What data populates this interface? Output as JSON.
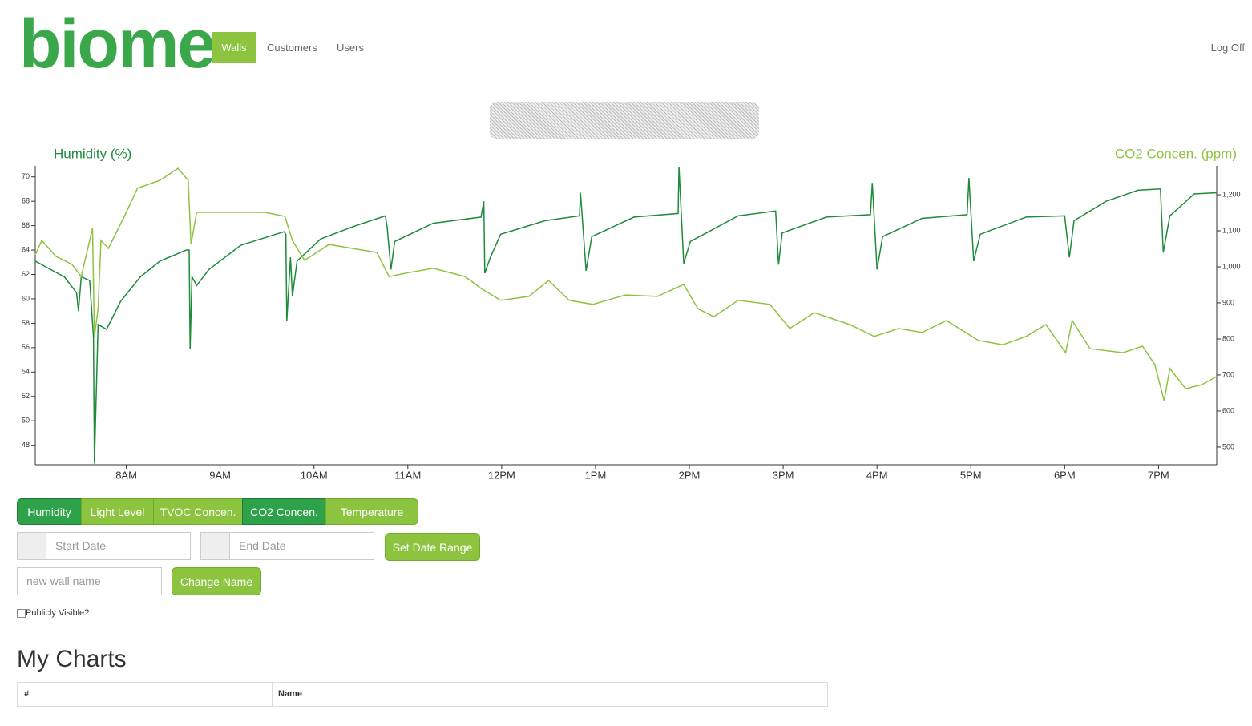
{
  "logo": "biome",
  "nav": {
    "items": [
      "Walls",
      "Customers",
      "Users"
    ],
    "logoff": "Log Off"
  },
  "chart_data": {
    "type": "line",
    "y_label": "Humidity (%)",
    "y2_label": "CO2 Concen. (ppm)",
    "xlim": [
      7.03,
      19.62
    ],
    "xticks": [
      {
        "value": 8,
        "label": "8AM"
      },
      {
        "value": 9,
        "label": "9AM"
      },
      {
        "value": 10,
        "label": "10AM"
      },
      {
        "value": 11,
        "label": "11AM"
      },
      {
        "value": 12,
        "label": "12PM"
      },
      {
        "value": 13,
        "label": "1PM"
      },
      {
        "value": 14,
        "label": "2PM"
      },
      {
        "value": 15,
        "label": "3PM"
      },
      {
        "value": 16,
        "label": "4PM"
      },
      {
        "value": 17,
        "label": "5PM"
      },
      {
        "value": 18,
        "label": "6PM"
      },
      {
        "value": 19,
        "label": "7PM"
      }
    ],
    "ylim": [
      46.4,
      70.9
    ],
    "yticks": [
      48,
      50,
      52,
      54,
      56,
      58,
      60,
      62,
      64,
      66,
      68,
      70
    ],
    "y2lim": [
      451,
      1280
    ],
    "y2ticks": [
      500,
      600,
      700,
      800,
      900,
      {
        "value": 1000,
        "label": "1,000"
      },
      {
        "value": 1100,
        "label": "1,100"
      },
      {
        "value": 1200,
        "label": "1,200"
      }
    ],
    "series": [
      {
        "name": "Humidity",
        "color": "#1e8a3c",
        "x": [
          7.03,
          7.17,
          7.34,
          7.47,
          7.49,
          7.52,
          7.61,
          7.65,
          7.66,
          7.7,
          7.79,
          7.94,
          8.15,
          8.36,
          8.64,
          8.67,
          8.68,
          8.7,
          8.75,
          8.88,
          9.22,
          9.68,
          9.7,
          9.71,
          9.75,
          9.77,
          9.82,
          10.07,
          10.41,
          10.76,
          10.78,
          10.82,
          10.86,
          11.27,
          11.78,
          11.81,
          11.82,
          11.88,
          11.99,
          12.46,
          12.83,
          12.84,
          12.9,
          12.96,
          13.41,
          13.88,
          13.89,
          13.94,
          14.01,
          14.52,
          14.92,
          14.95,
          14.99,
          15.46,
          15.93,
          15.95,
          16.0,
          16.06,
          16.48,
          16.96,
          16.98,
          17.03,
          17.1,
          17.59,
          18.0,
          18.05,
          18.1,
          18.44,
          18.78,
          19.0,
          19.02,
          19.05,
          19.12,
          19.38,
          19.62
        ],
        "values": [
          63.1,
          62.5,
          61.8,
          60.5,
          59.0,
          61.8,
          61.5,
          56.9,
          46.5,
          57.9,
          57.5,
          59.8,
          61.8,
          63.1,
          64.0,
          64.0,
          55.9,
          61.8,
          61.1,
          62.4,
          64.4,
          65.5,
          65.3,
          58.2,
          63.4,
          60.2,
          63.1,
          64.9,
          65.9,
          66.8,
          65.9,
          62.4,
          64.7,
          66.2,
          66.7,
          68.0,
          62.1,
          63.4,
          65.3,
          66.4,
          66.8,
          68.7,
          62.3,
          65.1,
          66.7,
          67.0,
          70.8,
          62.9,
          64.7,
          66.8,
          67.2,
          62.8,
          65.4,
          66.7,
          66.9,
          69.5,
          62.4,
          65.1,
          66.6,
          66.9,
          69.9,
          63.1,
          65.3,
          66.7,
          66.8,
          63.4,
          66.4,
          68.0,
          68.9,
          69.0,
          69.0,
          63.8,
          66.8,
          68.6,
          68.7
        ]
      },
      {
        "name": "CO2 Concen.",
        "color": "#8cc43f",
        "axis": "y2",
        "x": [
          7.03,
          7.1,
          7.25,
          7.42,
          7.52,
          7.61,
          7.64,
          7.66,
          7.7,
          7.73,
          7.81,
          7.98,
          8.12,
          8.36,
          8.55,
          8.66,
          8.69,
          8.75,
          9.13,
          9.48,
          9.69,
          9.77,
          9.9,
          10.16,
          10.41,
          10.67,
          10.8,
          11.01,
          11.27,
          11.61,
          11.78,
          11.99,
          12.29,
          12.5,
          12.72,
          12.97,
          13.32,
          13.66,
          13.94,
          14.09,
          14.26,
          14.52,
          14.86,
          15.07,
          15.33,
          15.71,
          15.97,
          16.23,
          16.48,
          16.74,
          17.08,
          17.34,
          17.59,
          17.8,
          18.01,
          18.08,
          18.27,
          18.62,
          18.83,
          18.96,
          19.06,
          19.12,
          19.29,
          19.46,
          19.62
        ],
        "values": [
          1033,
          1073,
          1029,
          1007,
          973,
          1073,
          1107,
          807,
          884,
          1073,
          1051,
          1140,
          1218,
          1240,
          1273,
          1240,
          1062,
          1151,
          1151,
          1151,
          1140,
          1073,
          1018,
          1062,
          1051,
          1040,
          973,
          984,
          996,
          973,
          940,
          907,
          918,
          962,
          907,
          896,
          922,
          918,
          951,
          884,
          862,
          907,
          896,
          829,
          873,
          840,
          807,
          829,
          818,
          851,
          796,
          784,
          807,
          840,
          762,
          851,
          773,
          762,
          780,
          729,
          629,
          718,
          662,
          673,
          696
        ]
      }
    ]
  },
  "buttons": [
    "Humidity",
    "Light Level",
    "TVOC Concen.",
    "CO2 Concen.",
    "Temperature"
  ],
  "date_range": {
    "start": "Start Date",
    "end": "End Date",
    "submit": "Set Date Range"
  },
  "rename": {
    "placeholder": "new wall name",
    "submit": "Change Name"
  },
  "public_label": "Publicly Visible?",
  "my_charts": {
    "title": "My Charts",
    "columns": [
      "#",
      "Name"
    ]
  }
}
